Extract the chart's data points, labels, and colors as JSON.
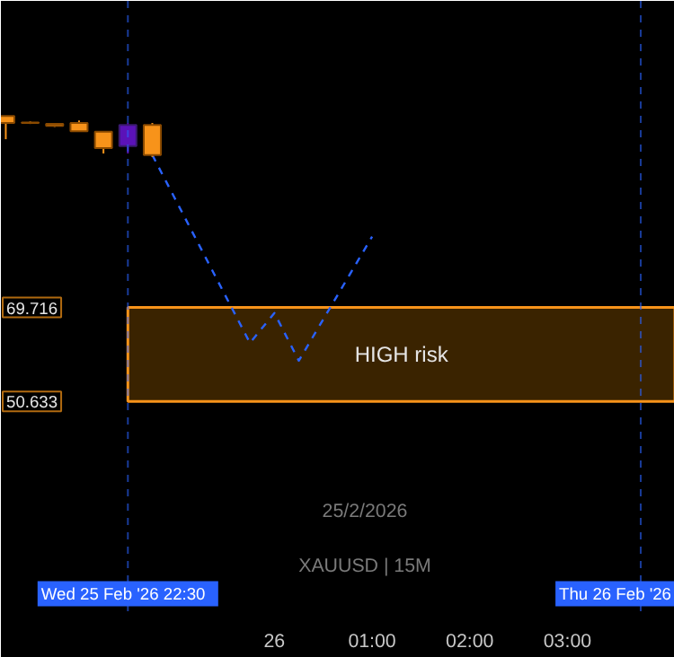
{
  "chart_data": {
    "type": "candlestick",
    "x": [
      "2026-02-25T21:15",
      "2026-02-25T21:30",
      "2026-02-25T21:45",
      "2026-02-25T22:00",
      "2026-02-25T22:15",
      "2026-02-25T22:30",
      "2026-02-25T22:45"
    ],
    "ohlc": [
      [
        108.6,
        108.6,
        103.9,
        107.2
      ],
      [
        107.3,
        107.5,
        107.0,
        107.2
      ],
      [
        107.0,
        107.2,
        106.4,
        106.6
      ],
      [
        107.2,
        107.7,
        105.4,
        105.5
      ],
      [
        105.4,
        105.4,
        101.0,
        102.1
      ],
      [
        102.5,
        107.2,
        101.0,
        106.8
      ],
      [
        106.8,
        107.2,
        100.3,
        100.7
      ]
    ],
    "colors": [
      "#f7931a",
      "#f7931a",
      "#f7931a",
      "#f7931a",
      "#f7931a",
      "#5b12b8",
      "#f7931a"
    ],
    "series": [
      {
        "type": "line",
        "x": [
          "2026-02-25T22:45",
          "2026-02-25T23:45",
          "2026-02-26T00:00",
          "2026-02-26T00:15",
          "2026-02-26T01:00"
        ],
        "values": [
          100.7,
          62.5,
          68.6,
          58.9,
          84.1
        ],
        "color": "#2962ff"
      }
    ],
    "line_style": "dashed",
    "xlim": [
      "2026-02-25T21:12",
      "2026-02-26T04:06"
    ],
    "ylim": [
      8,
      132
    ],
    "xticks": [
      {
        "value": "2026-02-26T00:00",
        "label": "26"
      },
      {
        "value": "2026-02-26T01:00",
        "label": "01:00"
      },
      {
        "value": "2026-02-26T02:00",
        "label": "02:00"
      },
      {
        "value": "2026-02-26T03:00",
        "label": "03:00"
      }
    ],
    "yticks": [
      50.633,
      69.716
    ],
    "ref_lines": [
      {
        "axis": "x",
        "value": "2026-02-25T22:30",
        "label": "Wed 25 Feb '26   22:30",
        "color": "#2962ff",
        "line_style": "dashed"
      },
      {
        "axis": "x",
        "value": "2026-02-26T03:45",
        "label": "Thu 26 Feb '26",
        "color": "#2962ff",
        "line_style": "dashed"
      }
    ],
    "bands": [
      {
        "axis": "y",
        "from": 50.633,
        "to": 69.716,
        "label": "HIGH risk",
        "color": "#3a2300"
      }
    ],
    "annotations": [
      "25/2/2026",
      "XAUUSD | 15M"
    ],
    "grid": false
  }
}
